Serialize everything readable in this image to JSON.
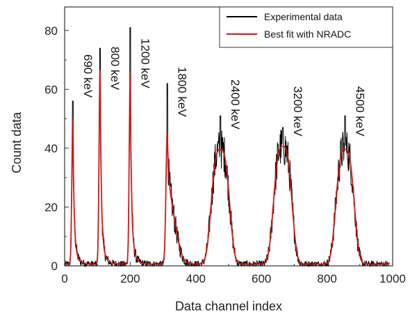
{
  "chart_data": {
    "type": "line",
    "title": "",
    "xlabel": "Data channel index",
    "ylabel": "Count data",
    "xlim": [
      0,
      1000
    ],
    "ylim": [
      0,
      88
    ],
    "xticks": [
      0,
      200,
      400,
      600,
      800,
      1000
    ],
    "yticks": [
      0,
      20,
      40,
      60,
      80
    ],
    "grid": false,
    "legend": {
      "placement": "top-right"
    },
    "series": [
      {
        "name": "Experimental data",
        "color": "#000000"
      },
      {
        "name": "Best fit with NRADC",
        "color": "#d01818"
      }
    ],
    "peaks": [
      {
        "label": "690 keV",
        "center": 25,
        "amplitude": 49,
        "exp_max": 56,
        "shape": "sharp"
      },
      {
        "label": "800 keV",
        "center": 108,
        "amplitude": 66,
        "exp_max": 74,
        "shape": "sharp"
      },
      {
        "label": "1200 keV",
        "center": 200,
        "amplitude": 65,
        "exp_max": 81,
        "shape": "sharp"
      },
      {
        "label": "1800 keV",
        "center": 313,
        "amplitude": 45,
        "exp_max": 62,
        "shape": "skewed"
      },
      {
        "label": "2400 keV",
        "center": 475,
        "amplitude": 39,
        "exp_max": 51,
        "shape": "broad"
      },
      {
        "label": "3200 keV",
        "center": 665,
        "amplitude": 40,
        "exp_max": 47,
        "shape": "broad"
      },
      {
        "label": "4500 keV",
        "center": 855,
        "amplitude": 39,
        "exp_max": 51,
        "shape": "broad"
      }
    ]
  }
}
